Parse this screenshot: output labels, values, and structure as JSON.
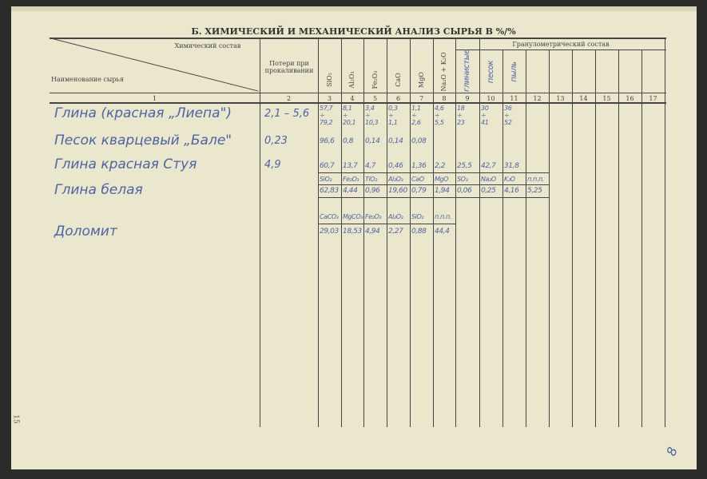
{
  "title": "Б. ХИМИЧЕСКИЙ И МЕХАНИЧЕСКИЙ АНАЛИЗ СЫРЬЯ В %/%",
  "header": {
    "chem_label": "Химический состав",
    "name_label": "Наименование сырья",
    "loss_label": "Потери при прокаливании",
    "oxides": [
      "SiO₂",
      "Al₂O₃",
      "Fe₂O₃",
      "CaO",
      "MgO",
      "Na₂O + K₂O"
    ],
    "granulo_label": "Гранулометрический состав",
    "granulo_handwritten": [
      "глинистые",
      "песок",
      "пыль"
    ],
    "column_numbers": [
      "1",
      "2",
      "3",
      "4",
      "5",
      "6",
      "7",
      "8",
      "9",
      "10",
      "11",
      "12",
      "13",
      "14",
      "15",
      "16",
      "17"
    ]
  },
  "rows": [
    {
      "name": "Глина (красная „Лиепа\")",
      "loss": "2,1 – 5,6",
      "values": [
        "57,7 ÷ 79,2",
        "8,1 ÷ 20,1",
        "3,4 ÷ 10,3",
        "0,3 ÷ 1,1",
        "1,1 ÷ 2,6",
        "4,6 ÷ 5,5",
        "18 ÷ 23",
        "30 ÷ 41",
        "36 ÷ 52"
      ]
    },
    {
      "name": "Песок кварцевый „Бале\"",
      "loss": "0,23",
      "values": [
        "96,6",
        "0,8",
        "0,14",
        "0,14",
        "0,08"
      ]
    },
    {
      "name": "Глина красная Стуя",
      "loss": "4,9",
      "values": [
        "60,7",
        "13,7",
        "4,7",
        "0,46",
        "1,36",
        "2,2",
        "25,5",
        "42,7",
        "31,8"
      ]
    },
    {
      "name": "Глина белая",
      "sub_labels": [
        "SiO₂",
        "Fe₂O₃",
        "TiO₂",
        "Al₂O₃",
        "CaO",
        "MgO",
        "SO₃",
        "Na₂O",
        "K₂O",
        "п.п.п."
      ],
      "values": [
        "62,83",
        "4,44",
        "0,96",
        "19,60",
        "0,79",
        "1,94",
        "0,06",
        "0,25",
        "4,16",
        "5,25"
      ]
    },
    {
      "name": "Доломит",
      "sub_labels": [
        "CaCO₃",
        "MgCO₃",
        "Fe₂O₃",
        "Al₂O₃",
        "SiO₂",
        "п.п.п."
      ],
      "values": [
        "29,03",
        "18,53",
        "4,94",
        "2,27",
        "0,88",
        "44,4"
      ]
    }
  ],
  "page_number": "15",
  "corner_mark": "8"
}
